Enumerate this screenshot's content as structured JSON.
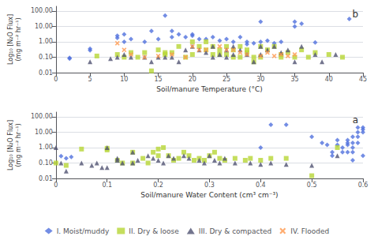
{
  "chart_data": [
    {
      "type": "scatter",
      "annotation": "b",
      "xlabel": "Soil/manure Temperature (°C)",
      "ylabel": "Log₁₀ [N₂O Flux]\n(mg m⁻² hr⁻¹)",
      "log": "y",
      "grid": true,
      "xlim": [
        0,
        45
      ],
      "xticks": [
        0,
        5,
        10,
        15,
        20,
        25,
        30,
        35,
        40,
        45
      ],
      "ylim": [
        0.01,
        200.0
      ],
      "yticks": [
        0.01,
        {
          "value": 0.1,
          "label": "0.10"
        },
        {
          "value": 1.0,
          "label": "1.00"
        },
        {
          "value": 10.0,
          "label": "10.00"
        },
        {
          "value": 100.0,
          "label": "100.00"
        }
      ],
      "series": [
        {
          "name": "I. Moist/muddy",
          "marker": "diamond",
          "x": [
            2,
            2,
            5,
            5,
            9,
            9,
            10,
            10,
            11,
            13,
            14,
            15,
            16,
            17,
            17,
            18,
            19,
            20,
            20,
            21,
            22,
            23,
            24,
            25,
            26,
            27,
            28,
            28,
            29,
            30,
            30,
            31,
            32,
            33,
            35,
            35,
            36,
            38,
            43
          ],
          "values": [
            0.08,
            0.09,
            0.28,
            0.35,
            1.8,
            2.5,
            1.0,
            3.0,
            1.5,
            1.0,
            5.0,
            1.5,
            50.0,
            2.0,
            5.0,
            3.0,
            2.0,
            3.0,
            2.5,
            1.5,
            1.5,
            2.0,
            1.2,
            1.5,
            1.0,
            2.0,
            1.0,
            0.7,
            0.8,
            20.0,
            1.0,
            1.2,
            0.8,
            1.0,
            20.0,
            10.0,
            15.0,
            0.9,
            30.0
          ]
        },
        {
          "name": "II. Dry & loose",
          "marker": "square",
          "x": [
            6,
            9,
            10,
            11,
            12,
            13,
            14,
            15,
            16,
            16,
            17,
            18,
            19,
            20,
            20,
            21,
            22,
            22,
            23,
            23,
            24,
            24,
            25,
            25,
            26,
            26,
            27,
            27,
            28,
            28,
            29,
            29,
            30,
            30,
            31,
            32,
            33,
            33,
            34,
            35,
            36,
            37,
            38,
            40,
            42
          ],
          "values": [
            0.12,
            0.15,
            0.1,
            0.2,
            0.1,
            0.2,
            0.013,
            0.3,
            0.2,
            0.15,
            0.2,
            0.5,
            0.1,
            1.0,
            0.15,
            0.5,
            0.3,
            1.0,
            0.5,
            0.15,
            0.3,
            0.15,
            0.5,
            0.15,
            0.3,
            0.1,
            0.5,
            0.1,
            0.2,
            0.3,
            0.05,
            0.1,
            0.5,
            0.1,
            0.3,
            0.5,
            0.15,
            0.1,
            0.2,
            0.1,
            0.3,
            0.1,
            0.2,
            0.15,
            0.1
          ]
        },
        {
          "name": "III. Dry & compacted",
          "marker": "triangle",
          "x": [
            5,
            8,
            9,
            10,
            11,
            13,
            14,
            15,
            16,
            17,
            18,
            19,
            20,
            21,
            22,
            23,
            23,
            24,
            25,
            25,
            26,
            26,
            27,
            28,
            29,
            30,
            30,
            31,
            32,
            33,
            34,
            35,
            36,
            38,
            39,
            41
          ],
          "values": [
            0.05,
            0.08,
            0.1,
            0.15,
            0.1,
            0.1,
            0.05,
            0.1,
            0.1,
            0.1,
            0.05,
            0.3,
            0.5,
            0.3,
            0.2,
            0.5,
            0.1,
            0.15,
            0.3,
            0.1,
            0.5,
            0.15,
            0.3,
            0.15,
            0.05,
            0.5,
            0.15,
            0.3,
            0.5,
            0.2,
            0.3,
            0.05,
            0.5,
            0.15,
            0.05,
            0.15
          ]
        },
        {
          "name": "IV. Flooded",
          "marker": "x",
          "x": [
            9,
            10,
            11,
            13,
            15,
            17,
            19,
            20,
            21,
            22,
            24,
            25,
            26,
            27,
            28,
            30,
            31,
            32,
            33,
            34,
            35
          ],
          "values": [
            0.8,
            0.3,
            0.15,
            0.1,
            0.12,
            0.15,
            0.1,
            0.5,
            0.3,
            0.3,
            0.5,
            0.3,
            0.3,
            0.2,
            0.15,
            0.12,
            0.2,
            0.12,
            0.15,
            0.12,
            0.15
          ]
        }
      ]
    },
    {
      "type": "scatter",
      "annotation": "a",
      "xlabel": "Soil/manure Water Content (cm³ cm⁻³)",
      "ylabel": "Log₁₀ [N₂O Flux]\n(mg m⁻² hr⁻¹)",
      "log": "y",
      "grid": true,
      "legend": "bottom",
      "xlim": [
        0,
        0.6
      ],
      "xticks": [
        0,
        0.1,
        0.2,
        0.3,
        0.4,
        0.5,
        0.6
      ],
      "ylim": [
        0.01,
        200.0
      ],
      "yticks": [
        0.01,
        {
          "value": 0.1,
          "label": "0.10"
        },
        {
          "value": 1.0,
          "label": "1.00"
        },
        {
          "value": 10.0,
          "label": "10.00"
        },
        {
          "value": 100.0,
          "label": "100.00"
        }
      ],
      "series": [
        {
          "name": "I. Moist/muddy",
          "marker": "diamond",
          "x": [
            0.01,
            0.02,
            0.03,
            0.4,
            0.42,
            0.45,
            0.5,
            0.52,
            0.53,
            0.54,
            0.54,
            0.55,
            0.55,
            0.56,
            0.56,
            0.57,
            0.57,
            0.57,
            0.57,
            0.58,
            0.58,
            0.58,
            0.58,
            0.58,
            0.59,
            0.59,
            0.59,
            0.59,
            0.6,
            0.6,
            0.6,
            0.6
          ],
          "values": [
            0.28,
            0.2,
            0.25,
            1.0,
            30.0,
            30.0,
            5.0,
            2.0,
            1.5,
            0.5,
            0.3,
            3.0,
            1.5,
            1.0,
            0.5,
            3.0,
            2.0,
            1.5,
            0.5,
            5.0,
            2.0,
            1.0,
            0.5,
            0.15,
            20.0,
            10.0,
            5.0,
            2.0,
            20.0,
            15.0,
            10.0,
            0.3
          ]
        },
        {
          "name": "II. Dry & loose",
          "marker": "square",
          "x": [
            0.0,
            0.02,
            0.05,
            0.1,
            0.1,
            0.12,
            0.13,
            0.15,
            0.15,
            0.17,
            0.18,
            0.19,
            0.2,
            0.2,
            0.21,
            0.22,
            0.23,
            0.24,
            0.25,
            0.26,
            0.27,
            0.28,
            0.29,
            0.3,
            0.31,
            0.32,
            0.33,
            0.35,
            0.37,
            0.38,
            0.4,
            0.42,
            0.45,
            0.5,
            0.55
          ],
          "values": [
            0.1,
            0.07,
            0.8,
            0.7,
            0.9,
            0.15,
            0.1,
            0.1,
            0.5,
            0.2,
            0.1,
            0.5,
            0.3,
            0.8,
            1.0,
            0.3,
            0.15,
            0.2,
            0.5,
            0.3,
            0.15,
            0.2,
            0.15,
            0.3,
            0.5,
            0.2,
            0.15,
            0.2,
            0.15,
            0.2,
            0.15,
            0.2,
            0.2,
            0.015,
            1.0
          ]
        },
        {
          "name": "III. Dry & compacted",
          "marker": "triangle",
          "x": [
            0.0,
            0.01,
            0.02,
            0.05,
            0.07,
            0.08,
            0.09,
            0.1,
            0.1,
            0.12,
            0.12,
            0.13,
            0.15,
            0.15,
            0.16,
            0.18,
            0.19,
            0.2,
            0.21,
            0.22,
            0.23,
            0.25,
            0.26,
            0.28,
            0.29,
            0.3,
            0.31,
            0.32,
            0.33,
            0.35,
            0.38,
            0.4,
            0.42,
            0.45,
            0.5,
            0.55
          ],
          "values": [
            1.0,
            0.1,
            0.03,
            0.1,
            0.07,
            0.1,
            0.05,
            0.05,
            1.0,
            0.15,
            0.2,
            0.1,
            0.1,
            0.5,
            0.15,
            0.3,
            0.2,
            0.15,
            0.1,
            0.3,
            0.2,
            0.3,
            0.2,
            0.15,
            0.1,
            0.3,
            0.15,
            0.1,
            0.2,
            0.1,
            0.1,
            0.08,
            0.1,
            0.08,
            0.07,
            0.3
          ]
        },
        {
          "name": "IV. Flooded",
          "marker": "x",
          "x": [],
          "values": []
        }
      ]
    }
  ]
}
